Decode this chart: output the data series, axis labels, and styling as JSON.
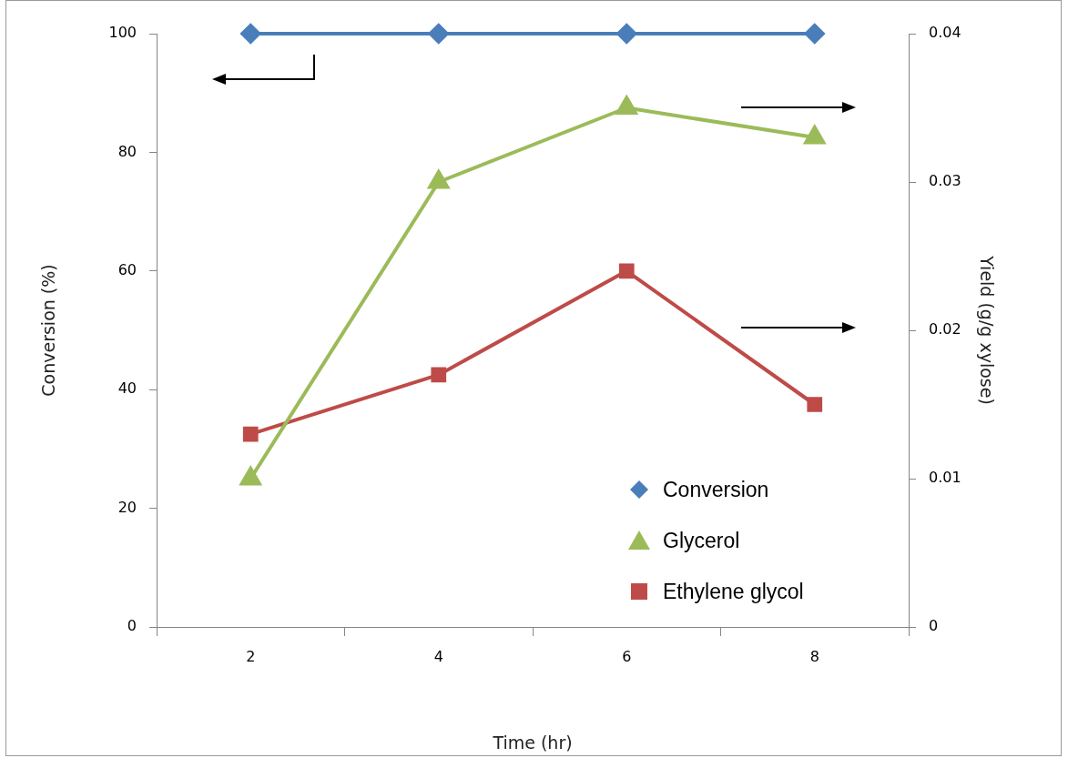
{
  "chart_data": {
    "type": "line",
    "xlabel": "Time (hr)",
    "ylabel": "Conversion (%)",
    "y2label": "Yield (g/g xylose)",
    "categories": [
      "2",
      "4",
      "6",
      "8"
    ],
    "ylim": [
      0,
      100
    ],
    "yticks": [
      0,
      20,
      40,
      60,
      80,
      100
    ],
    "y2lim": [
      0,
      0.04
    ],
    "y2ticks": [
      0,
      0.01,
      0.02,
      0.03,
      0.04
    ],
    "grid": false,
    "legend": "bottom right",
    "series": [
      {
        "name": "Conversion",
        "color": "#4a7ebb",
        "marker": "diamond",
        "values": [
          100,
          100,
          100,
          100
        ]
      },
      {
        "name": "Glycerol",
        "color": "#9bbb59",
        "marker": "triangle",
        "axis": "y2",
        "values": [
          0.01,
          0.03,
          0.035,
          0.033
        ]
      },
      {
        "name": "Ethylene glycol",
        "color": "#be4b48",
        "marker": "square",
        "axis": "y2",
        "values": [
          0.013,
          0.017,
          0.024,
          0.015
        ]
      }
    ]
  }
}
